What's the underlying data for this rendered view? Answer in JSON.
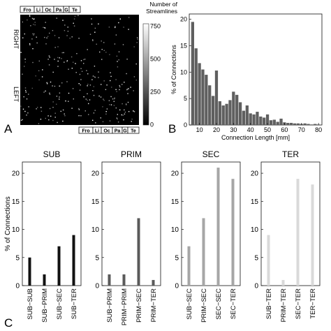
{
  "panels": {
    "A": "A",
    "B": "B",
    "C": "C"
  },
  "matrix": {
    "lobes": [
      "Fro",
      "Li",
      "Oc",
      "Pa",
      "G",
      "Te"
    ],
    "side_right": "RIGHT",
    "side_left": "LEFT",
    "colorbar_title": [
      "Number of",
      "Streamlines"
    ],
    "colorbar_ticks": [
      "750",
      "500",
      "250",
      "0"
    ],
    "colorbar_values": [
      750,
      500,
      250,
      0
    ]
  },
  "chart_data": [
    {
      "type": "bar",
      "panel": "B",
      "xlabel": "Connection Length [mm]",
      "ylabel": "% of Connections",
      "xlim": [
        4,
        82
      ],
      "ylim": [
        0,
        21
      ],
      "xticks": [
        10,
        20,
        30,
        40,
        50,
        60,
        70,
        80
      ],
      "yticks": [
        0,
        5,
        10,
        15,
        20
      ],
      "bin_width": 2,
      "x": [
        6,
        8,
        10,
        12,
        14,
        16,
        18,
        20,
        22,
        24,
        26,
        28,
        30,
        32,
        34,
        36,
        38,
        40,
        42,
        44,
        46,
        48,
        50,
        52,
        54,
        56,
        58,
        60,
        62,
        64,
        66,
        68,
        70,
        72,
        74,
        76,
        78,
        80
      ],
      "values": [
        19.5,
        14.5,
        11.7,
        10.5,
        9.5,
        7.5,
        5.5,
        10.3,
        4.5,
        3.7,
        4.0,
        4.7,
        6.3,
        5.7,
        4.3,
        2.7,
        3.7,
        2.2,
        2.0,
        2.5,
        1.6,
        1.4,
        2.0,
        0.9,
        1.0,
        0.6,
        1.2,
        0.5,
        0.4,
        0.4,
        0.3,
        0.3,
        0.2,
        0.3,
        0.2,
        0.1,
        0.2,
        0.1
      ]
    },
    {
      "type": "bar",
      "panel": "C",
      "title": "SUB",
      "ylabel": "% of Connections",
      "ylim": [
        0,
        22
      ],
      "yticks": [
        0,
        5,
        10,
        15,
        20
      ],
      "categories": [
        "SUB−SUB",
        "SUB−PRIM",
        "SUB−SEC",
        "SUB−TER"
      ],
      "values": [
        5,
        2,
        7,
        9
      ],
      "color": "#111111"
    },
    {
      "type": "bar",
      "panel": "C",
      "title": "PRIM",
      "ylim": [
        0,
        22
      ],
      "yticks": [
        0,
        5,
        10,
        15,
        20
      ],
      "categories": [
        "SUB−PRIM",
        "PRIM−PRIM",
        "PRIM−SEC",
        "PRIM−TER"
      ],
      "values": [
        2,
        2,
        12,
        1
      ],
      "color": "#5a5a5a"
    },
    {
      "type": "bar",
      "panel": "C",
      "title": "SEC",
      "ylim": [
        0,
        22
      ],
      "yticks": [
        0,
        5,
        10,
        15,
        20
      ],
      "categories": [
        "SUB−SEC",
        "PRIM−SEC",
        "SEC−SEC",
        "SEC−TER"
      ],
      "values": [
        7,
        12,
        21,
        19
      ],
      "color": "#a6a6a6"
    },
    {
      "type": "bar",
      "panel": "C",
      "title": "TER",
      "ylim": [
        0,
        22
      ],
      "yticks": [
        0,
        5,
        10,
        15,
        20
      ],
      "categories": [
        "SUB−TER",
        "PRIM−TER",
        "SEC−TER",
        "TER−TER"
      ],
      "values": [
        9,
        1,
        19,
        18
      ],
      "color": "#d9d9d9"
    }
  ]
}
